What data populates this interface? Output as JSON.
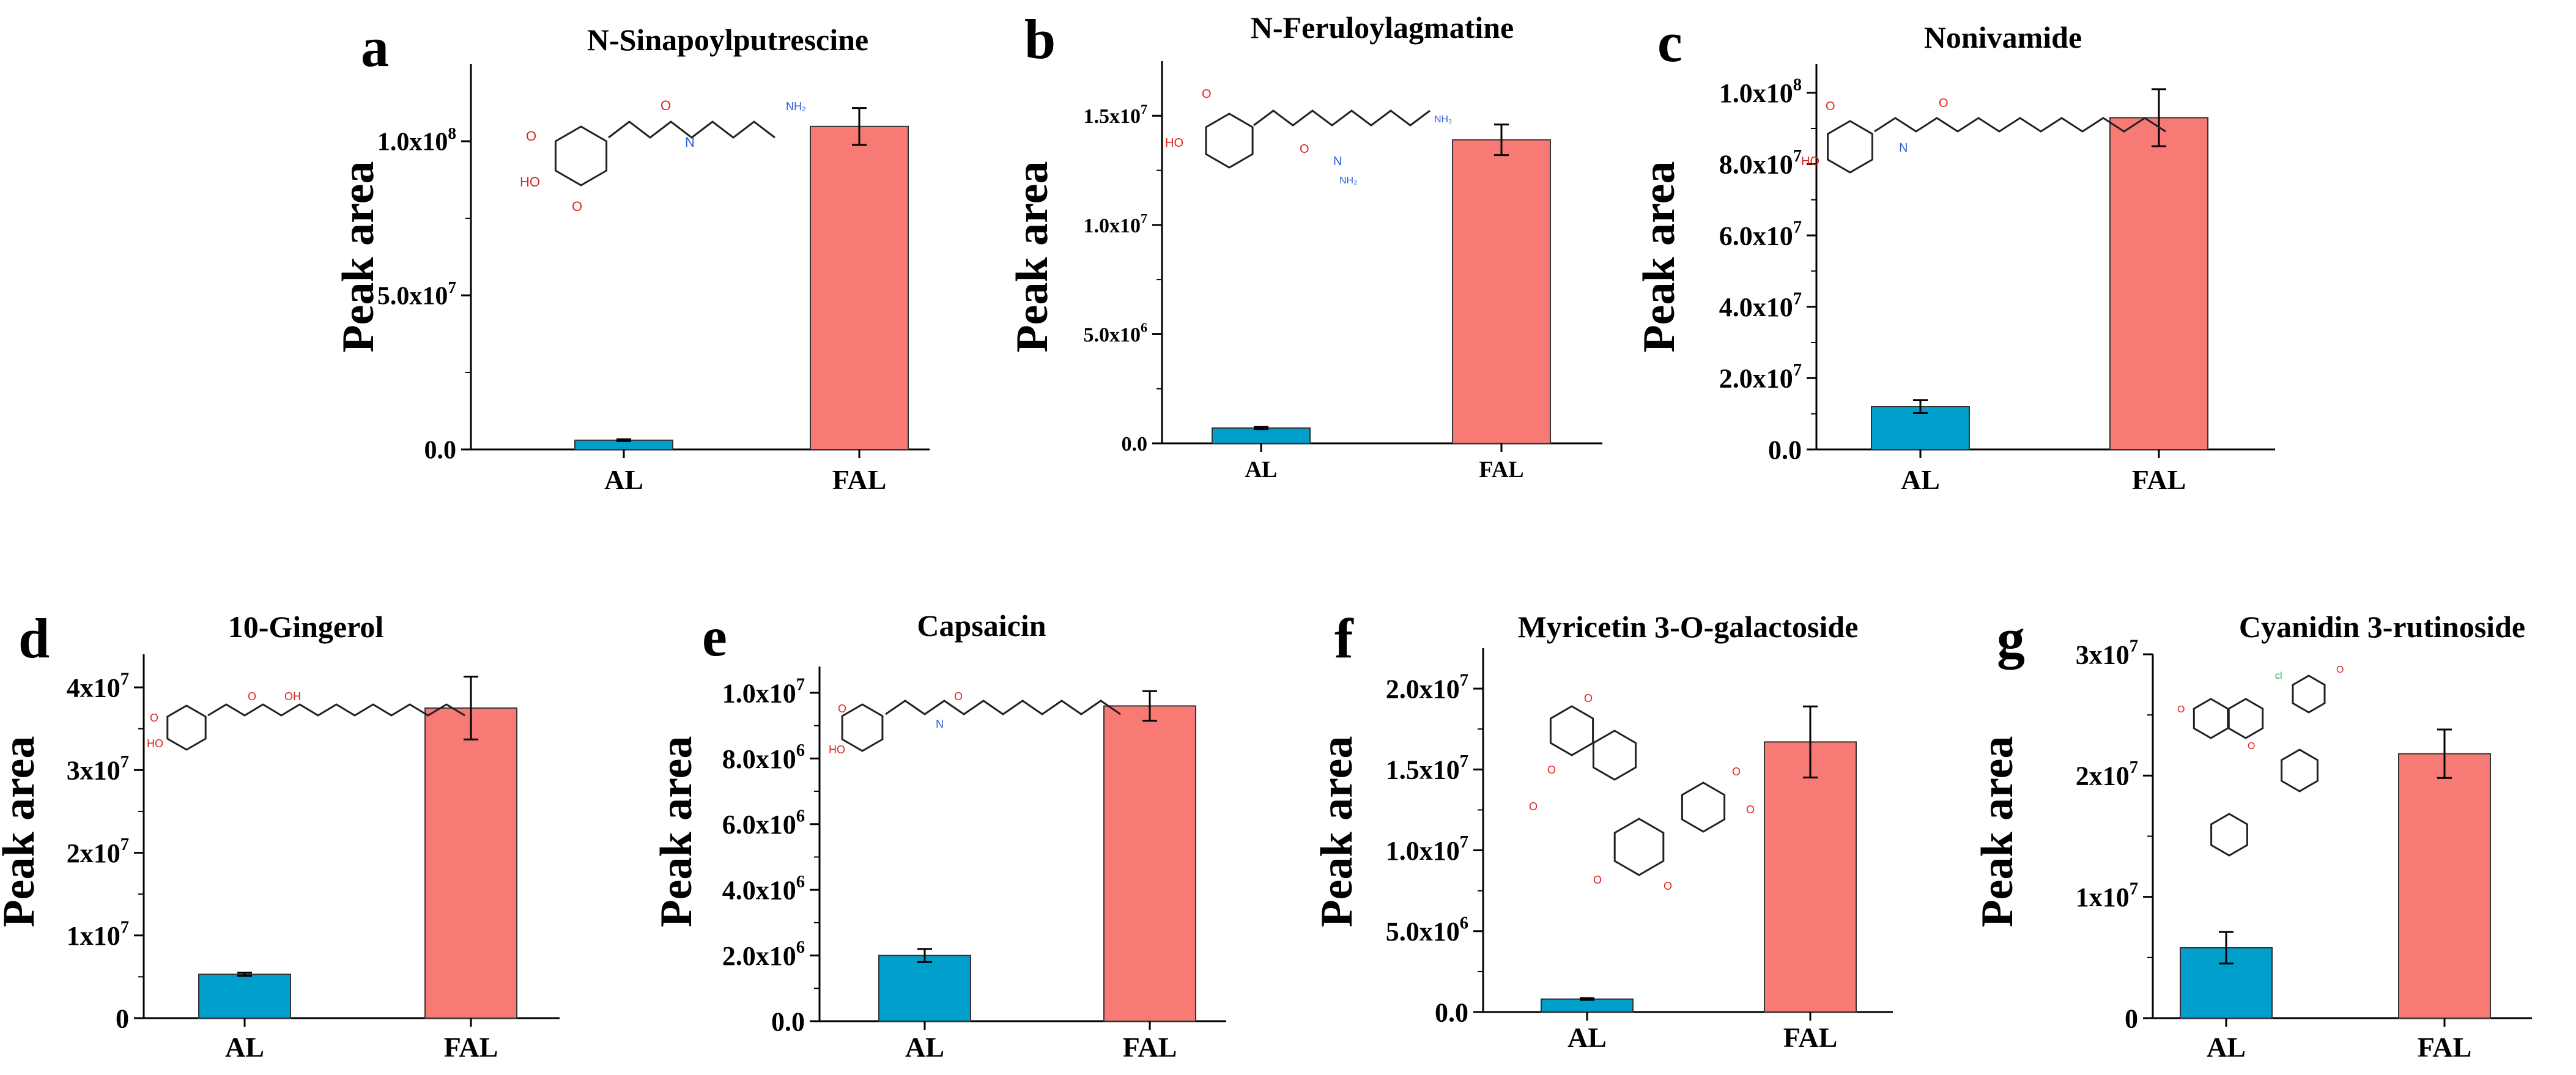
{
  "colors": {
    "AL": "#009fcc",
    "FAL": "#f77a75"
  },
  "y_axis_label": "Peak area",
  "chart_data": [
    {
      "panel": "a",
      "type": "bar",
      "title": "N-Sinapoylputrescine",
      "categories": [
        "AL",
        "FAL"
      ],
      "values": [
        3000000,
        104800000
      ],
      "errors": [
        300000,
        6000000
      ],
      "ylim": [
        0,
        125000000
      ],
      "yticks": [
        {
          "v": 0,
          "m": "0.0",
          "e": ""
        },
        {
          "v": 50000000,
          "m": "5.0x10",
          "e": "7"
        },
        {
          "v": 100000000,
          "m": "1.0x10",
          "e": "8"
        }
      ],
      "structure": "sinapoyl"
    },
    {
      "panel": "b",
      "type": "bar",
      "title": "N-Feruloylagmatine",
      "categories": [
        "AL",
        "FAL"
      ],
      "values": [
        700000,
        13900000
      ],
      "errors": [
        50000,
        700000
      ],
      "ylim": [
        0,
        17500000
      ],
      "yticks": [
        {
          "v": 0,
          "m": "0.0",
          "e": ""
        },
        {
          "v": 5000000,
          "m": "5.0x10",
          "e": "6"
        },
        {
          "v": 10000000,
          "m": "1.0x10",
          "e": "7"
        },
        {
          "v": 15000000,
          "m": "1.5x10",
          "e": "7"
        }
      ],
      "structure": "feruloyl"
    },
    {
      "panel": "c",
      "type": "bar",
      "title": "Nonivamide",
      "categories": [
        "AL",
        "FAL"
      ],
      "values": [
        12000000,
        93000000
      ],
      "errors": [
        1800000,
        8000000
      ],
      "ylim": [
        0,
        108000000
      ],
      "yticks": [
        {
          "v": 0,
          "m": "0.0",
          "e": ""
        },
        {
          "v": 20000000,
          "m": "2.0x10",
          "e": "7"
        },
        {
          "v": 40000000,
          "m": "4.0x10",
          "e": "7"
        },
        {
          "v": 60000000,
          "m": "6.0x10",
          "e": "7"
        },
        {
          "v": 80000000,
          "m": "8.0x10",
          "e": "7"
        },
        {
          "v": 100000000,
          "m": "1.0x10",
          "e": "8"
        }
      ],
      "structure": "vanillyl"
    },
    {
      "panel": "d",
      "type": "bar",
      "title": "10-Gingerol",
      "categories": [
        "AL",
        "FAL"
      ],
      "values": [
        5300000,
        37500000
      ],
      "errors": [
        200000,
        3800000
      ],
      "ylim": [
        0,
        44000000
      ],
      "yticks": [
        {
          "v": 0,
          "m": "0",
          "e": ""
        },
        {
          "v": 10000000,
          "m": "1x10",
          "e": "7"
        },
        {
          "v": 20000000,
          "m": "2x10",
          "e": "7"
        },
        {
          "v": 30000000,
          "m": "3x10",
          "e": "7"
        },
        {
          "v": 40000000,
          "m": "4x10",
          "e": "7"
        }
      ],
      "structure": "gingerol"
    },
    {
      "panel": "e",
      "type": "bar",
      "title": "Capsaicin",
      "categories": [
        "AL",
        "FAL"
      ],
      "values": [
        2000000,
        9600000
      ],
      "errors": [
        200000,
        450000
      ],
      "ylim": [
        0,
        10800000
      ],
      "yticks": [
        {
          "v": 0,
          "m": "0.0",
          "e": ""
        },
        {
          "v": 2000000,
          "m": "2.0x10",
          "e": "6"
        },
        {
          "v": 4000000,
          "m": "4.0x10",
          "e": "6"
        },
        {
          "v": 6000000,
          "m": "6.0x10",
          "e": "6"
        },
        {
          "v": 8000000,
          "m": "8.0x10",
          "e": "6"
        },
        {
          "v": 10000000,
          "m": "1.0x10",
          "e": "7"
        }
      ],
      "structure": "capsaicin"
    },
    {
      "panel": "f",
      "type": "bar",
      "title": "Myricetin 3-O-galactoside",
      "categories": [
        "AL",
        "FAL"
      ],
      "values": [
        800000,
        16700000
      ],
      "errors": [
        50000,
        2200000
      ],
      "ylim": [
        0,
        22500000
      ],
      "yticks": [
        {
          "v": 0,
          "m": "0.0",
          "e": ""
        },
        {
          "v": 5000000,
          "m": "5.0x10",
          "e": "6"
        },
        {
          "v": 10000000,
          "m": "1.0x10",
          "e": "7"
        },
        {
          "v": 15000000,
          "m": "1.5x10",
          "e": "7"
        },
        {
          "v": 20000000,
          "m": "2.0x10",
          "e": "7"
        }
      ],
      "structure": "flavonoid"
    },
    {
      "panel": "g",
      "type": "bar",
      "title": "Cyanidin 3-rutinoside",
      "categories": [
        "AL",
        "FAL"
      ],
      "values": [
        5800000,
        21800000
      ],
      "errors": [
        1300000,
        2000000
      ],
      "ylim": [
        0,
        30000000
      ],
      "yticks": [
        {
          "v": 0,
          "m": "0",
          "e": ""
        },
        {
          "v": 10000000,
          "m": "1x10",
          "e": "7"
        },
        {
          "v": 20000000,
          "m": "2x10",
          "e": "7"
        },
        {
          "v": 30000000,
          "m": "3x10",
          "e": "7"
        }
      ],
      "structure": "cyanidin"
    }
  ]
}
